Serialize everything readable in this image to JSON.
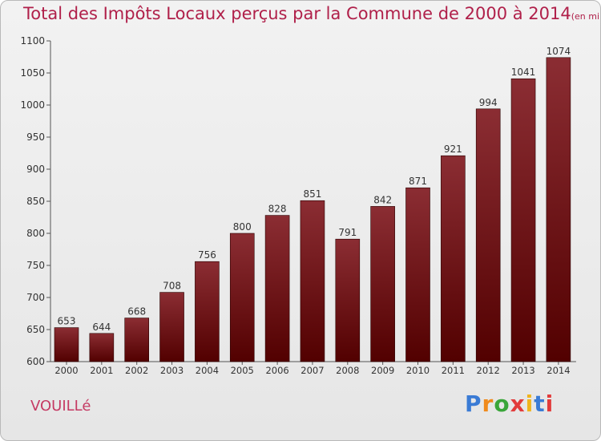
{
  "title": "Total des Impôts Locaux perçus par la Commune de 2000 à 2014",
  "title_unit": "(en milliers d'€)",
  "commune": "VOUILLé",
  "logo": {
    "text": "Proxiti",
    "colors": [
      "#3a7bd5",
      "#f08a1c",
      "#3aa63a",
      "#e23b3b",
      "#f0b41c",
      "#3a7bd5",
      "#e23b3b"
    ]
  },
  "colors": {
    "bar_top": "#8b2d33",
    "bar_bottom": "#520000",
    "title": "#b0204a",
    "commune": "#c53a63"
  },
  "chart_data": {
    "type": "bar",
    "title": "Total des Impôts Locaux perçus par la Commune de 2000 à 2014",
    "xlabel": "",
    "ylabel": "",
    "categories": [
      "2000",
      "2001",
      "2002",
      "2003",
      "2004",
      "2005",
      "2006",
      "2007",
      "2008",
      "2009",
      "2010",
      "2011",
      "2012",
      "2013",
      "2014"
    ],
    "values": [
      653,
      644,
      668,
      708,
      756,
      800,
      828,
      851,
      791,
      842,
      871,
      921,
      994,
      1041,
      1074
    ],
    "ylim": [
      600,
      1100
    ],
    "yticks": [
      600,
      650,
      700,
      750,
      800,
      850,
      900,
      950,
      1000,
      1050,
      1100
    ],
    "grid": false,
    "data_labels": true
  }
}
